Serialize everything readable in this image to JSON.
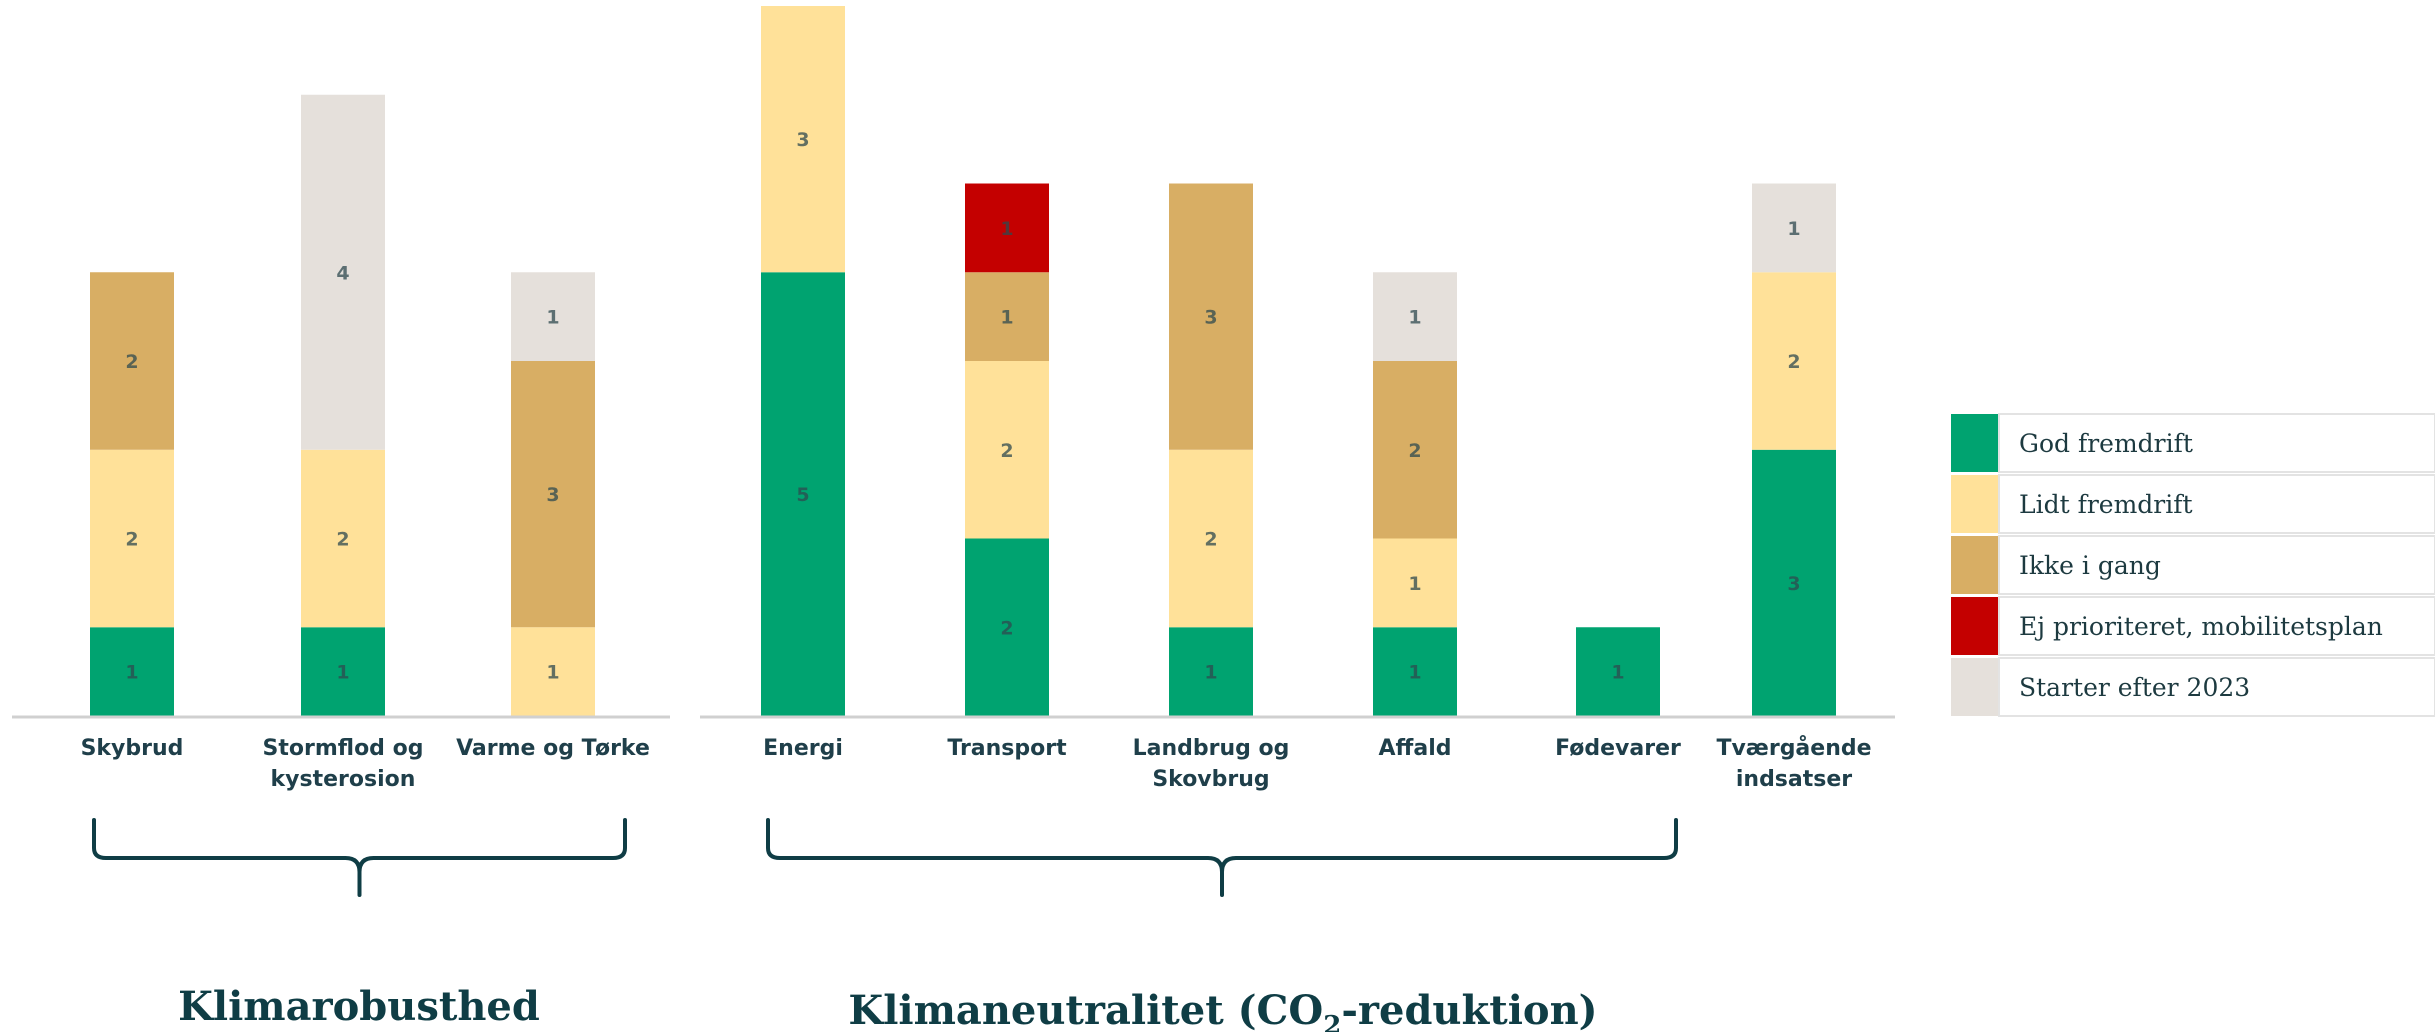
{
  "chart_data": {
    "type": "bar",
    "stacked": true,
    "ylim": [
      0,
      8
    ],
    "grid": false,
    "legend_position": "right",
    "categories": [
      "Skybrud",
      "Stormflod og kysterosion",
      "Varme og Tørke",
      "Energi",
      "Transport",
      "Landbrug og Skovbrug",
      "Affald",
      "Fødevarer",
      "Tværgående indsatser"
    ],
    "category_lines": [
      [
        "Skybrud"
      ],
      [
        "Stormflod og",
        "kysterosion"
      ],
      [
        "Varme og Tørke"
      ],
      [
        "Energi"
      ],
      [
        "Transport"
      ],
      [
        "Landbrug og",
        "Skovbrug"
      ],
      [
        "Affald"
      ],
      [
        "Fødevarer"
      ],
      [
        "Tværgående",
        "indsatser"
      ]
    ],
    "series": [
      {
        "name": "God fremdrift",
        "color": "#00a370",
        "values": [
          1,
          1,
          0,
          5,
          2,
          1,
          1,
          1,
          3
        ]
      },
      {
        "name": "Lidt fremdrift",
        "color": "#ffe199",
        "values": [
          2,
          2,
          1,
          3,
          2,
          2,
          1,
          0,
          2
        ]
      },
      {
        "name": "Ikke i gang",
        "color": "#d8ae64",
        "values": [
          2,
          0,
          3,
          0,
          1,
          3,
          2,
          0,
          0
        ]
      },
      {
        "name": "Ej prioriteret, mobilitetsplan",
        "color": "#c40000",
        "values": [
          0,
          0,
          0,
          0,
          1,
          0,
          0,
          0,
          0
        ]
      },
      {
        "name": "Starter efter 2023",
        "color": "#e5e0db",
        "values": [
          0,
          4,
          1,
          0,
          0,
          0,
          1,
          0,
          1
        ]
      }
    ],
    "groups": [
      {
        "title": "Klimarobusthed",
        "categories": [
          "Skybrud",
          "Stormflod og kysterosion",
          "Varme og Tørke"
        ]
      },
      {
        "title_main": "Klimaneutralitet (CO",
        "title_sub": "2",
        "title_end": "-reduktion)",
        "categories": [
          "Energi",
          "Transport",
          "Landbrug og Skovbrug",
          "Affald",
          "Fødevarer",
          "Tværgående indsatser"
        ]
      }
    ]
  },
  "colors": {
    "axis": "#d0d0d0",
    "brace": "#0f3d45",
    "legend_border": "#e3e3e3"
  }
}
